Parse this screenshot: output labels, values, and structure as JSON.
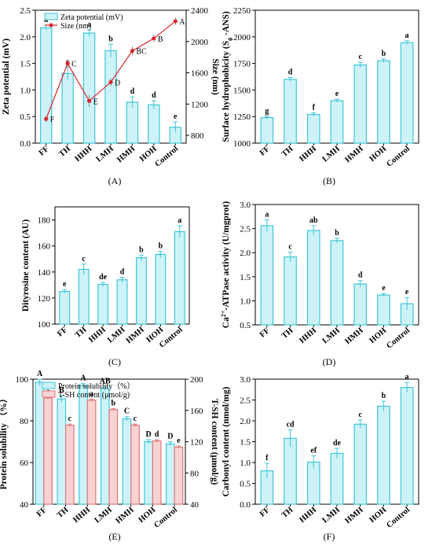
{
  "categories": [
    "FF",
    "TH",
    "HHH",
    "LMH",
    "HMH",
    "HOH",
    "Control"
  ],
  "colors": {
    "bar_fill": "#cdf3f9",
    "bar_stroke": "#3fc6d8",
    "bar2_fill": "#f9d3d3",
    "bar2_stroke": "#e07878",
    "line": "#d9252a"
  },
  "chart_data": [
    {
      "panel": "A",
      "type": "bar+line",
      "caption": "(A)",
      "ylabel": "Zeta potential (mV)",
      "ylim": [
        0.0,
        2.5
      ],
      "yticks": [
        "0.0",
        "0.5",
        "1.0",
        "1.5",
        "2.0",
        "2.5"
      ],
      "y2label": "Size (nm)",
      "y2lim": [
        700,
        2400
      ],
      "y2ticks": [
        "800",
        "1200",
        "1600",
        "2000",
        "2400"
      ],
      "legend": [
        "Zeta potential (mV)",
        "Size (nm)"
      ],
      "series": [
        {
          "name": "Zeta potential (mV)",
          "kind": "bar",
          "values": [
            2.17,
            1.31,
            2.07,
            1.74,
            0.77,
            0.72,
            0.3
          ],
          "errors": [
            0.05,
            0.12,
            0.06,
            0.12,
            0.1,
            0.08,
            0.1
          ],
          "letters": [
            "a",
            "c",
            "a",
            "b",
            "d",
            "d",
            "e"
          ]
        },
        {
          "name": "Size (nm)",
          "kind": "line",
          "values": [
            1010,
            1720,
            1240,
            1480,
            1880,
            2040,
            2260
          ],
          "errors": [
            40,
            40,
            80,
            50,
            60,
            50,
            50
          ],
          "letters": [
            "F",
            "C",
            "E",
            "D",
            "BC",
            "B",
            "A"
          ]
        }
      ]
    },
    {
      "panel": "B",
      "type": "bar",
      "caption": "(B)",
      "ylabel": "Surface hydrophobicity (S0 -ANS)",
      "ylim": [
        1000,
        2250
      ],
      "yticks": [
        "1000",
        "1250",
        "1500",
        "1750",
        "2000",
        "2250"
      ],
      "series": [
        {
          "values": [
            1240,
            1600,
            1270,
            1400,
            1735,
            1775,
            1945
          ],
          "errors": [
            12,
            18,
            15,
            15,
            25,
            18,
            18
          ],
          "letters": [
            "g",
            "d",
            "f",
            "e",
            "c",
            "b",
            "a"
          ]
        }
      ]
    },
    {
      "panel": "C",
      "type": "bar",
      "caption": "(C)",
      "ylabel": "Dityrosine content (AU)",
      "ylim": [
        100,
        190
      ],
      "yticks": [
        "100",
        "120",
        "140",
        "160",
        "180"
      ],
      "series": [
        {
          "values": [
            125,
            142,
            130.5,
            134,
            151,
            153.5,
            171
          ],
          "errors": [
            1.5,
            4,
            1.5,
            2,
            2,
            2.5,
            4.5
          ],
          "letters": [
            "e",
            "c",
            "de",
            "d",
            "b",
            "b",
            "a"
          ]
        }
      ]
    },
    {
      "panel": "D",
      "type": "bar",
      "caption": "(D)",
      "ylabel": "Ca2+-ATPase activity (U/mgprot)",
      "ylim": [
        0.5,
        3.0
      ],
      "yticks": [
        "0.5",
        "1.0",
        "1.5",
        "2.0",
        "2.5",
        "3.0"
      ],
      "series": [
        {
          "values": [
            2.56,
            1.91,
            2.46,
            2.25,
            1.35,
            1.12,
            0.94
          ],
          "errors": [
            0.12,
            0.1,
            0.1,
            0.05,
            0.07,
            0.03,
            0.13
          ],
          "letters": [
            "a",
            "c",
            "ab",
            "b",
            "d",
            "e",
            "e"
          ]
        }
      ]
    },
    {
      "panel": "E",
      "type": "grouped bar",
      "caption": "(E)",
      "ylabel": "Protein solubility （%）",
      "ylim": [
        40,
        100
      ],
      "yticks": [
        "40",
        "60",
        "80",
        "100"
      ],
      "y2label": "T-SH content (μmol/g)",
      "y2lim": [
        40,
        200
      ],
      "y2ticks": [
        "40",
        "80",
        "120",
        "160",
        "200"
      ],
      "legend": [
        "Protein solubility（%）",
        "T-SH content (μmol/g)"
      ],
      "series": [
        {
          "name": "Protein solubility（%）",
          "values": [
            98.5,
            90.5,
            97,
            95.5,
            81,
            70,
            69
          ],
          "errors": [
            1.5,
            1.5,
            1,
            1,
            1,
            1,
            1
          ],
          "letters": [
            "A",
            "B",
            "A",
            "AB",
            "C",
            "D",
            "D"
          ]
        },
        {
          "name": "T-SH content (μmol/g)",
          "values": [
            176,
            141,
            173,
            161,
            141,
            121,
            113
          ],
          "errors": [
            1.5,
            1.5,
            1.5,
            1.5,
            1.5,
            1.5,
            1.5
          ],
          "letters": [
            "a",
            "c",
            "a",
            "b",
            "c",
            "d",
            "e"
          ]
        }
      ]
    },
    {
      "panel": "F",
      "type": "bar",
      "caption": "(F)",
      "ylabel": "Carbonyl content (nmol/mg)",
      "ylim": [
        0.0,
        3.0
      ],
      "yticks": [
        "0.0",
        "0.5",
        "1.0",
        "1.5",
        "2.0",
        "2.5",
        "3.0"
      ],
      "series": [
        {
          "values": [
            0.8,
            1.58,
            1.01,
            1.22,
            1.92,
            2.35,
            2.8
          ],
          "errors": [
            0.18,
            0.2,
            0.15,
            0.12,
            0.1,
            0.12,
            0.12
          ],
          "letters": [
            "f",
            "cd",
            "ef",
            "de",
            "c",
            "b",
            "a"
          ]
        }
      ]
    }
  ]
}
